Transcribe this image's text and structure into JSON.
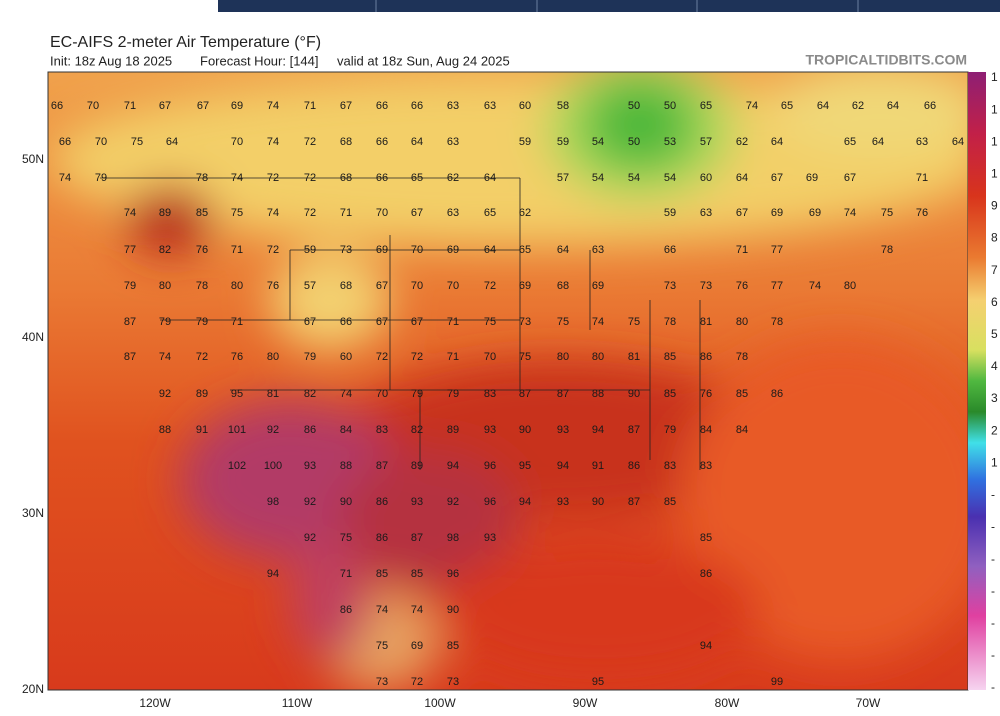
{
  "header": {
    "title": "EC-AIFS 2-meter Air Temperature (°F)",
    "init": "Init: 18z Aug 18 2025",
    "forecast_hour": "Forecast Hour: [144]",
    "valid": "valid at 18z Sun, Aug 24 2025",
    "brand": "TROPICALTIDBITS.COM"
  },
  "map": {
    "latitude_labels": [
      "50N",
      "40N",
      "30N",
      "20N"
    ],
    "longitude_labels": [
      "120W",
      "110W",
      "100W",
      "90W",
      "80W",
      "70W"
    ],
    "temperature_rows": [
      [
        66,
        70,
        71,
        67,
        67,
        69,
        74,
        71,
        67,
        66,
        66,
        63,
        63,
        60,
        58,
        50,
        50,
        65,
        74,
        65,
        64,
        62,
        64,
        66
      ],
      [
        66,
        70,
        75,
        64,
        70,
        74,
        72,
        68,
        66,
        64,
        63,
        59,
        59,
        54,
        50,
        53,
        57,
        62,
        64,
        65,
        64,
        63,
        64
      ],
      [
        74,
        79,
        78,
        74,
        72,
        72,
        68,
        66,
        65,
        62,
        64,
        57,
        54,
        54,
        54,
        60,
        64,
        67,
        69,
        67,
        71
      ],
      [
        74,
        89,
        85,
        75,
        74,
        72,
        71,
        70,
        67,
        63,
        65,
        62,
        59,
        63,
        67,
        69,
        69,
        74,
        75,
        76
      ],
      [
        77,
        82,
        76,
        71,
        72,
        59,
        73,
        69,
        70,
        69,
        64,
        65,
        64,
        63,
        66,
        71,
        77,
        78
      ],
      [
        79,
        80,
        78,
        80,
        76,
        57,
        68,
        67,
        70,
        70,
        72,
        69,
        68,
        69,
        73,
        73,
        76,
        77,
        74,
        80
      ],
      [
        87,
        79,
        79,
        71,
        67,
        66,
        67,
        67,
        71,
        75,
        73,
        75,
        74,
        75,
        78,
        81,
        80,
        78
      ],
      [
        87,
        74,
        72,
        76,
        80,
        79,
        60,
        72,
        72,
        71,
        70,
        75,
        80,
        80,
        81,
        85,
        86,
        78
      ],
      [
        92,
        89,
        95,
        81,
        82,
        74,
        70,
        79,
        79,
        83,
        87,
        87,
        88,
        90,
        85,
        76,
        85,
        86
      ],
      [
        88,
        91,
        101,
        92,
        86,
        84,
        83,
        82,
        89,
        93,
        90,
        93,
        94,
        87,
        79,
        84,
        84
      ],
      [
        102,
        100,
        93,
        88,
        87,
        89,
        94,
        96,
        95,
        94,
        91,
        86,
        83,
        83
      ],
      [
        98,
        92,
        90,
        86,
        93,
        92,
        96,
        94,
        93,
        90,
        87,
        85
      ],
      [
        92,
        75,
        86,
        87,
        98,
        93,
        85
      ],
      [
        94,
        71,
        85,
        85,
        96,
        86
      ],
      [
        86,
        74,
        74,
        90
      ],
      [
        75,
        69,
        85,
        94
      ],
      [
        73,
        72,
        73,
        95,
        99
      ]
    ]
  },
  "colorbar": {
    "labels": [
      "1",
      "1",
      "1",
      "1",
      "9",
      "8",
      "7",
      "6",
      "5",
      "4",
      "3",
      "2",
      "1",
      "-",
      "-",
      "-",
      "-",
      "-",
      "-",
      "-"
    ]
  }
}
